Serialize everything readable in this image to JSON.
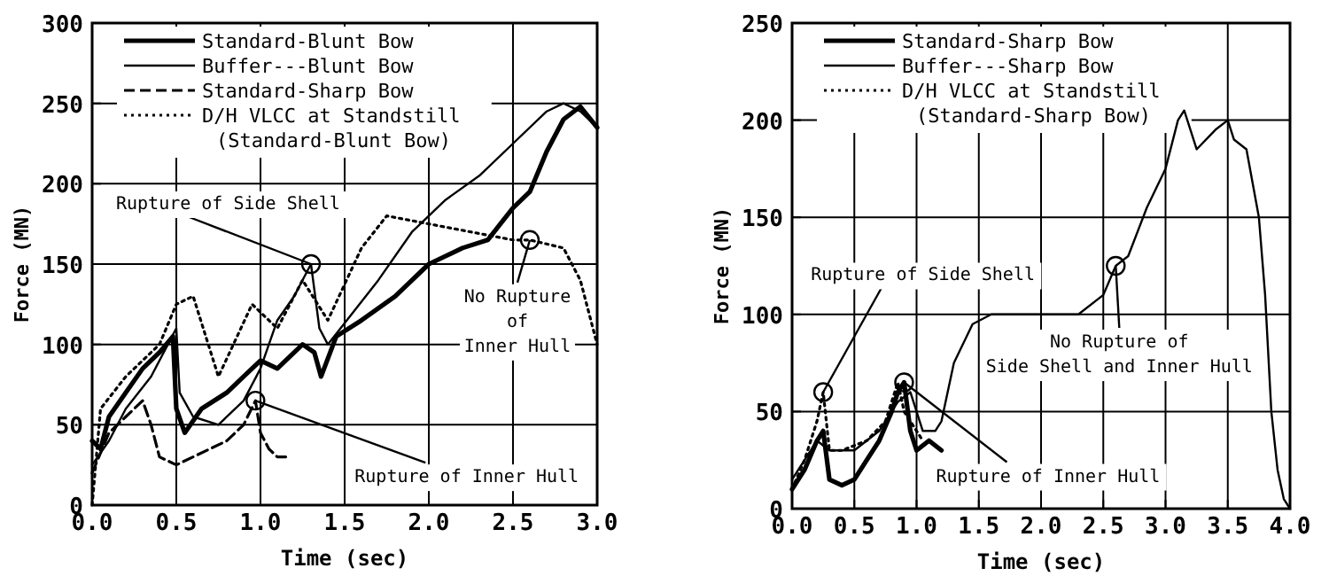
{
  "chart_data": [
    {
      "type": "line",
      "xlabel": "Time (sec)",
      "ylabel": "Force (MN)",
      "xlim": [
        0,
        3
      ],
      "ylim": [
        0,
        300
      ],
      "xticks": [
        {
          "value": 0,
          "label": "0.0"
        },
        {
          "value": 0.5,
          "label": "0.5"
        },
        {
          "value": 1,
          "label": "1.0"
        },
        {
          "value": 1.5,
          "label": "1.5"
        },
        {
          "value": 2,
          "label": "2.0"
        },
        {
          "value": 2.5,
          "label": "2.5"
        },
        {
          "value": 3,
          "label": "3.0"
        }
      ],
      "yticks": [
        0,
        50,
        100,
        150,
        200,
        250,
        300
      ],
      "grid": true,
      "legend": "top left",
      "series": [
        {
          "name": "Standard-Blunt Bow",
          "color": "#000000",
          "line_style": "solid",
          "x": [
            0,
            0.05,
            0.1,
            0.2,
            0.3,
            0.4,
            0.48,
            0.5,
            0.55,
            0.65,
            0.8,
            0.9,
            1.0,
            1.1,
            1.25,
            1.32,
            1.36,
            1.45,
            1.6,
            1.8,
            2.0,
            2.2,
            2.35,
            2.5,
            2.6,
            2.7,
            2.8,
            2.9,
            3.0
          ],
          "values": [
            40,
            35,
            55,
            70,
            85,
            95,
            105,
            60,
            45,
            60,
            70,
            80,
            90,
            85,
            100,
            95,
            80,
            105,
            115,
            130,
            150,
            160,
            165,
            185,
            195,
            220,
            240,
            248,
            235
          ]
        },
        {
          "name": "Buffer---Blunt Bow",
          "color": "#000000",
          "line_style": "solid",
          "x": [
            0,
            0.1,
            0.2,
            0.35,
            0.45,
            0.5,
            0.52,
            0.6,
            0.75,
            0.9,
            1.0,
            1.1,
            1.2,
            1.3,
            1.35,
            1.4,
            1.55,
            1.7,
            1.9,
            2.1,
            2.3,
            2.5,
            2.7,
            2.8,
            2.9,
            3.0
          ],
          "values": [
            25,
            40,
            60,
            80,
            100,
            110,
            70,
            55,
            50,
            65,
            85,
            115,
            130,
            150,
            110,
            100,
            120,
            140,
            170,
            190,
            205,
            225,
            245,
            250,
            245,
            235
          ]
        },
        {
          "name": "Standard-Sharp Bow",
          "color": "#000000",
          "line_style": "dashed",
          "x": [
            0,
            0.1,
            0.2,
            0.3,
            0.35,
            0.4,
            0.5,
            0.6,
            0.7,
            0.8,
            0.9,
            0.97,
            1.0,
            1.05,
            1.1,
            1.15
          ],
          "values": [
            20,
            45,
            55,
            65,
            50,
            30,
            25,
            30,
            35,
            40,
            50,
            65,
            45,
            35,
            30,
            30
          ]
        },
        {
          "name": "D/H VLCC at Standstill\n(Standard-Blunt Bow)",
          "color": "#000000",
          "line_style": "dotted",
          "x": [
            0,
            0.05,
            0.2,
            0.4,
            0.5,
            0.6,
            0.75,
            0.95,
            1.1,
            1.25,
            1.4,
            1.6,
            1.75,
            2.0,
            2.25,
            2.5,
            2.6,
            2.8,
            2.9,
            3.0
          ],
          "values": [
            0,
            60,
            80,
            100,
            125,
            130,
            80,
            125,
            110,
            140,
            115,
            160,
            180,
            175,
            170,
            165,
            165,
            160,
            140,
            100
          ]
        }
      ],
      "annotations": [
        {
          "text": "Rupture of Side Shell",
          "x": 1.3,
          "y": 150
        },
        {
          "text": "Rupture of Inner Hull",
          "x": 0.97,
          "y": 65
        },
        {
          "text": "No Rupture\nof\nInner Hull",
          "x": 2.6,
          "y": 165
        }
      ]
    },
    {
      "type": "line",
      "xlabel": "Time (sec)",
      "ylabel": "Force (MN)",
      "xlim": [
        0,
        4
      ],
      "ylim": [
        0,
        250
      ],
      "xticks": [
        {
          "value": 0,
          "label": "0.0"
        },
        {
          "value": 0.5,
          "label": "0.5"
        },
        {
          "value": 1,
          "label": "1.0"
        },
        {
          "value": 1.5,
          "label": "1.5"
        },
        {
          "value": 2,
          "label": "2.0"
        },
        {
          "value": 2.5,
          "label": "2.5"
        },
        {
          "value": 3,
          "label": "3.0"
        },
        {
          "value": 3.5,
          "label": "3.5"
        },
        {
          "value": 4,
          "label": "4.0"
        }
      ],
      "yticks": [
        0,
        50,
        100,
        150,
        200,
        250
      ],
      "grid": true,
      "legend": "top left",
      "series": [
        {
          "name": "Standard-Sharp Bow",
          "color": "#000000",
          "line_style": "solid",
          "x": [
            0,
            0.1,
            0.2,
            0.25,
            0.3,
            0.4,
            0.5,
            0.6,
            0.7,
            0.8,
            0.85,
            0.9,
            0.95,
            1.0,
            1.1,
            1.2
          ],
          "values": [
            10,
            20,
            35,
            40,
            15,
            12,
            15,
            25,
            35,
            50,
            60,
            65,
            40,
            30,
            35,
            30
          ]
        },
        {
          "name": "Buffer---Sharp Bow",
          "color": "#000000",
          "line_style": "solid",
          "x": [
            0,
            0.1,
            0.2,
            0.3,
            0.5,
            0.7,
            0.85,
            0.95,
            1.05,
            1.15,
            1.2,
            1.3,
            1.45,
            1.6,
            1.8,
            2.0,
            2.2,
            2.3,
            2.5,
            2.6,
            2.7,
            2.85,
            3.0,
            3.1,
            3.15,
            3.25,
            3.4,
            3.5,
            3.55,
            3.65,
            3.75,
            3.8,
            3.85,
            3.9,
            3.95,
            4.0
          ],
          "values": [
            15,
            25,
            35,
            30,
            30,
            40,
            55,
            60,
            40,
            40,
            45,
            75,
            95,
            100,
            100,
            100,
            100,
            100,
            110,
            125,
            130,
            155,
            175,
            200,
            205,
            185,
            195,
            200,
            190,
            185,
            150,
            110,
            50,
            20,
            5,
            0
          ]
        },
        {
          "name": "D/H VLCC at Standstill\n(Standard-Sharp Bow)",
          "color": "#000000",
          "line_style": "dotted",
          "x": [
            0,
            0.1,
            0.2,
            0.25,
            0.3,
            0.4,
            0.6,
            0.75,
            0.85,
            0.9,
            1.0,
            1.05
          ],
          "values": [
            10,
            25,
            45,
            60,
            30,
            30,
            35,
            45,
            65,
            50,
            40,
            35
          ]
        }
      ],
      "annotations": [
        {
          "text": "Rupture of Side Shell",
          "x": 0.25,
          "y": 60
        },
        {
          "text": "Rupture of Inner Hull",
          "x": 0.9,
          "y": 65
        },
        {
          "text": "No Rupture of\nSide Shell and Inner Hull",
          "x": 2.6,
          "y": 125
        }
      ]
    }
  ]
}
